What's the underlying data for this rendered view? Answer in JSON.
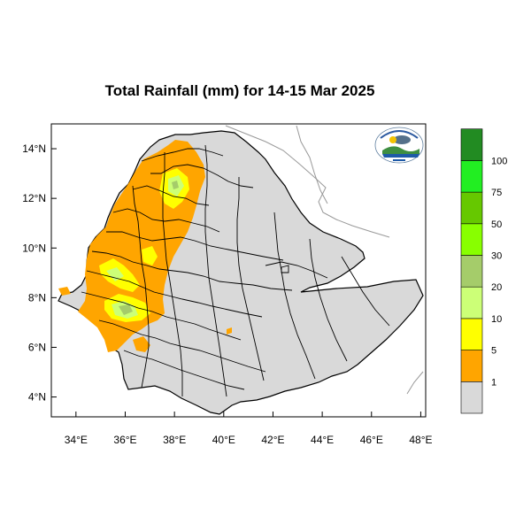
{
  "title": "Total Rainfall (mm) for 14-15 Mar 2025",
  "axes": {
    "x_ticks": [
      {
        "value": 34,
        "label": "34°E"
      },
      {
        "value": 36,
        "label": "36°E"
      },
      {
        "value": 38,
        "label": "38°E"
      },
      {
        "value": 40,
        "label": "40°E"
      },
      {
        "value": 42,
        "label": "42°E"
      },
      {
        "value": 44,
        "label": "44°E"
      },
      {
        "value": 46,
        "label": "46°E"
      },
      {
        "value": 48,
        "label": "48°E"
      }
    ],
    "y_ticks": [
      {
        "value": 4,
        "label": "4°N"
      },
      {
        "value": 6,
        "label": "6°N"
      },
      {
        "value": 8,
        "label": "8°N"
      },
      {
        "value": 10,
        "label": "10°N"
      },
      {
        "value": 12,
        "label": "12°N"
      },
      {
        "value": 14,
        "label": "14°N"
      }
    ],
    "xlim": [
      33,
      48.2
    ],
    "ylim": [
      3.2,
      15
    ]
  },
  "legend": {
    "levels": [
      {
        "label": "1",
        "color": "#ffa500"
      },
      {
        "label": "5",
        "color": "#ffff00"
      },
      {
        "label": "10",
        "color": "#ccff77"
      },
      {
        "label": "20",
        "color": "#a5cc6a"
      },
      {
        "label": "30",
        "color": "#88ff00"
      },
      {
        "label": "50",
        "color": "#66c800"
      },
      {
        "label": "75",
        "color": "#22ee22"
      },
      {
        "label": "100",
        "color": "#228b22"
      }
    ],
    "below_color": "#d9d9d9"
  },
  "colors": {
    "country_fill": "#d9d9d9",
    "boundary": "#000000",
    "neighbor_lines": "#999999"
  },
  "logo_icon": "ethiopian-meteorology-institute-logo"
}
